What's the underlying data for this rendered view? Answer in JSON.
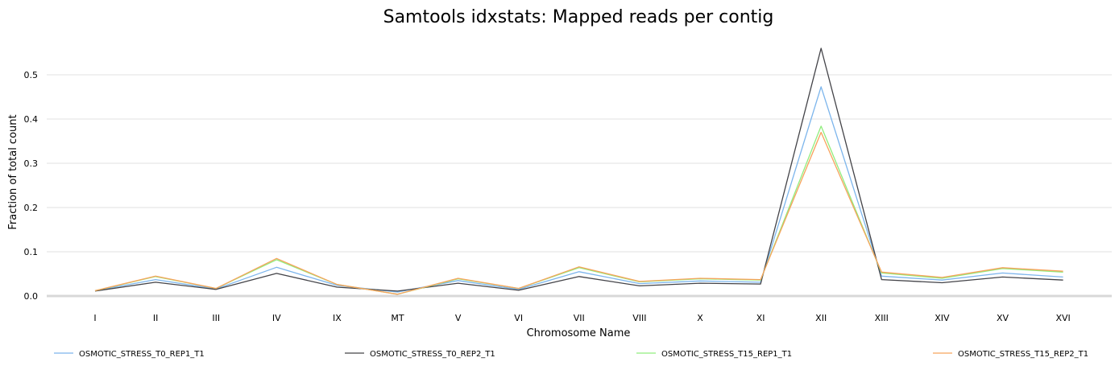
{
  "chart_data": {
    "type": "line",
    "title": "Samtools idxstats: Mapped reads per contig",
    "xlabel": "Chromosome Name",
    "ylabel": "Fraction of total count",
    "ylim": [
      0,
      0.5
    ],
    "yticks": [
      "0.0",
      "0.1",
      "0.2",
      "0.3",
      "0.4",
      "0.5"
    ],
    "grid": true,
    "legend_position": "bottom",
    "categories": [
      "I",
      "II",
      "III",
      "IV",
      "IX",
      "MT",
      "V",
      "VI",
      "VII",
      "VIII",
      "X",
      "XI",
      "XII",
      "XIII",
      "XIV",
      "XV",
      "XVI"
    ],
    "series": [
      {
        "name": "OSMOTIC_STRESS_T0_REP1_T1",
        "color": "#7cb5ec",
        "values": [
          0.012,
          0.037,
          0.016,
          0.065,
          0.024,
          0.009,
          0.035,
          0.015,
          0.055,
          0.028,
          0.034,
          0.031,
          0.473,
          0.045,
          0.036,
          0.052,
          0.043
        ]
      },
      {
        "name": "OSMOTIC_STRESS_T0_REP2_T1",
        "color": "#434348",
        "values": [
          0.011,
          0.031,
          0.015,
          0.051,
          0.02,
          0.011,
          0.029,
          0.013,
          0.044,
          0.023,
          0.029,
          0.027,
          0.56,
          0.037,
          0.03,
          0.043,
          0.036
        ]
      },
      {
        "name": "OSMOTIC_STRESS_T15_REP1_T1",
        "color": "#90ed7d",
        "values": [
          0.012,
          0.044,
          0.017,
          0.082,
          0.026,
          0.004,
          0.039,
          0.017,
          0.064,
          0.032,
          0.039,
          0.036,
          0.384,
          0.052,
          0.04,
          0.062,
          0.054
        ]
      },
      {
        "name": "OSMOTIC_STRESS_T15_REP2_T1",
        "color": "#f7a35c",
        "values": [
          0.012,
          0.045,
          0.017,
          0.085,
          0.026,
          0.004,
          0.04,
          0.017,
          0.066,
          0.033,
          0.04,
          0.037,
          0.37,
          0.054,
          0.042,
          0.064,
          0.056
        ]
      }
    ]
  }
}
